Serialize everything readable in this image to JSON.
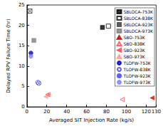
{
  "chart_data": {
    "type": "scatter",
    "x_label": "Averaged SIT Injection Rate (kg/s)",
    "y_label": "Delayed RPV Failure Time (hr)",
    "xlim": [
      0,
      130
    ],
    "xticks": [
      0,
      20,
      40,
      60,
      80,
      100,
      120
    ],
    "ylim": [
      0,
      25
    ],
    "yticks": [
      0,
      5,
      10,
      15,
      20,
      25
    ],
    "grid": false,
    "legend": "upper right",
    "series": [
      {
        "name": "SBLOCA-753K",
        "color": "#000000",
        "marker": "square-filled",
        "x": [
          76
        ],
        "values": [
          19.5
        ]
      },
      {
        "name": "SBLOCA-838K",
        "color": "#000000",
        "marker": "square-open",
        "x": [
          82
        ],
        "values": [
          19.8
        ]
      },
      {
        "name": "SBLOCA-923K",
        "color": "#333333",
        "marker": "square-crossed",
        "x": [
          3
        ],
        "values": [
          23.5
        ]
      },
      {
        "name": "SBLOCA-973K",
        "color": "#808080",
        "marker": "square-filled",
        "x": [
          7
        ],
        "values": [
          16.3
        ]
      },
      {
        "name": "SBO-753K",
        "color": "#cc0000",
        "marker": "triangle-filled",
        "x": [
          126
        ],
        "values": [
          2.2
        ]
      },
      {
        "name": "SBO-838K",
        "color": "#ff4444",
        "marker": "triangle-open",
        "x": [
          96
        ],
        "values": [
          1.8
        ]
      },
      {
        "name": "SBO-923K",
        "color": "#ff3333",
        "marker": "triangle-crossed",
        "x": [
          21
        ],
        "values": [
          3.0
        ]
      },
      {
        "name": "SBO-973K",
        "color": "#ff9999",
        "marker": "triangle-filled",
        "x": [
          19
        ],
        "values": [
          2.5
        ]
      },
      {
        "name": "TLOFW-753K",
        "color": "#0000cc",
        "marker": "circle-filled",
        "x": [
          4
        ],
        "values": [
          13.2
        ]
      },
      {
        "name": "TLOFW-838K",
        "color": "#3333ff",
        "marker": "circle-open",
        "x": [
          11
        ],
        "values": [
          6.0
        ]
      },
      {
        "name": "TLOFW-923K",
        "color": "#3333ff",
        "marker": "circle-crossed",
        "x": [
          12
        ],
        "values": [
          5.8
        ]
      },
      {
        "name": "TLOFW-973K",
        "color": "#8080ff",
        "marker": "circle-filled",
        "x": [
          4
        ],
        "values": [
          12.4
        ]
      }
    ]
  }
}
